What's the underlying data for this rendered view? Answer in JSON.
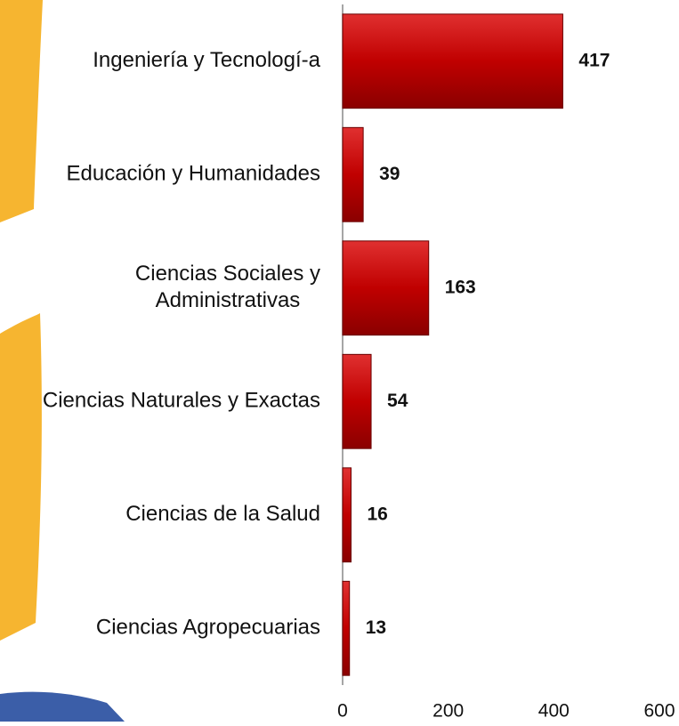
{
  "chart_data": {
    "type": "bar",
    "orientation": "horizontal",
    "categories": [
      "Ingeniería y Tecnologí-a",
      "Educación y Humanidades",
      "Ciencias Sociales y Administrativas",
      "Ciencias Naturales y Exactas",
      "Ciencias de la Salud",
      "Ciencias Agropecuarias"
    ],
    "values": [
      417,
      39,
      163,
      54,
      16,
      13
    ],
    "color": "#c00000",
    "xlim": [
      0,
      600
    ],
    "xticks": [
      0,
      200,
      400,
      600
    ],
    "grid": false
  }
}
